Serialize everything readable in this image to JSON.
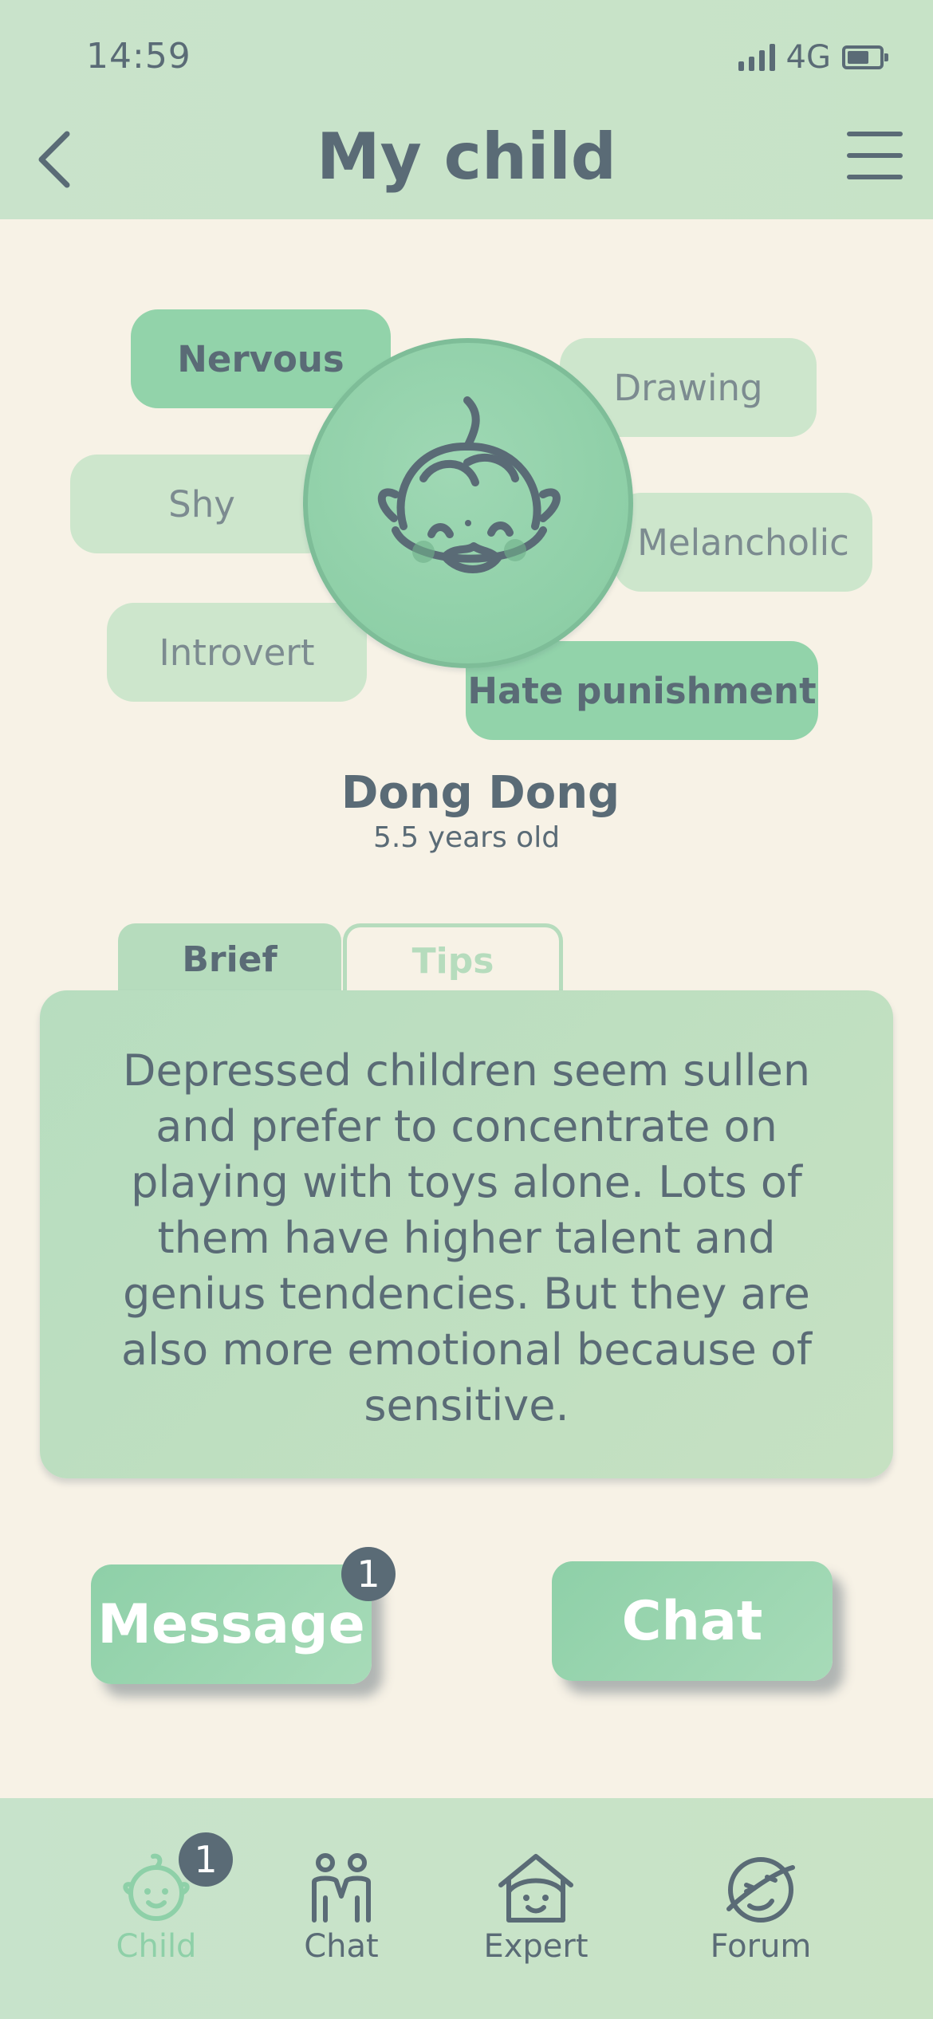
{
  "status_bar": {
    "time": "14:59",
    "network": "4G"
  },
  "header": {
    "title": "My child"
  },
  "traits": {
    "nervous": "Nervous",
    "drawing": "Drawing",
    "shy": "Shy",
    "melancholic": "Melancholic",
    "introvert": "Introvert",
    "hate_punishment": "Hate punishment"
  },
  "child": {
    "name": "Dong Dong",
    "age": "5.5 years old"
  },
  "tabs": {
    "brief": "Brief",
    "tips": "Tips",
    "active": "Brief"
  },
  "brief_text": "Depressed children seem sullen and prefer to concentrate on playing with toys alone. Lots of them have higher talent and genius tendencies. But they are also more emotional because of sensitive.",
  "actions": {
    "message": "Message",
    "message_badge": "1",
    "chat": "Chat"
  },
  "nav": {
    "items": [
      {
        "label": "Child",
        "icon": "baby-face-icon",
        "active": true,
        "badge": "1"
      },
      {
        "label": "Chat",
        "icon": "people-icon"
      },
      {
        "label": "Expert",
        "icon": "house-face-icon"
      },
      {
        "label": "Forum",
        "icon": "planet-face-icon"
      }
    ]
  },
  "colors": {
    "accent": "#8ed0a8",
    "header_bg": "#c9e3cb",
    "page_bg": "#f7f2e6",
    "text": "#5a6b76"
  }
}
